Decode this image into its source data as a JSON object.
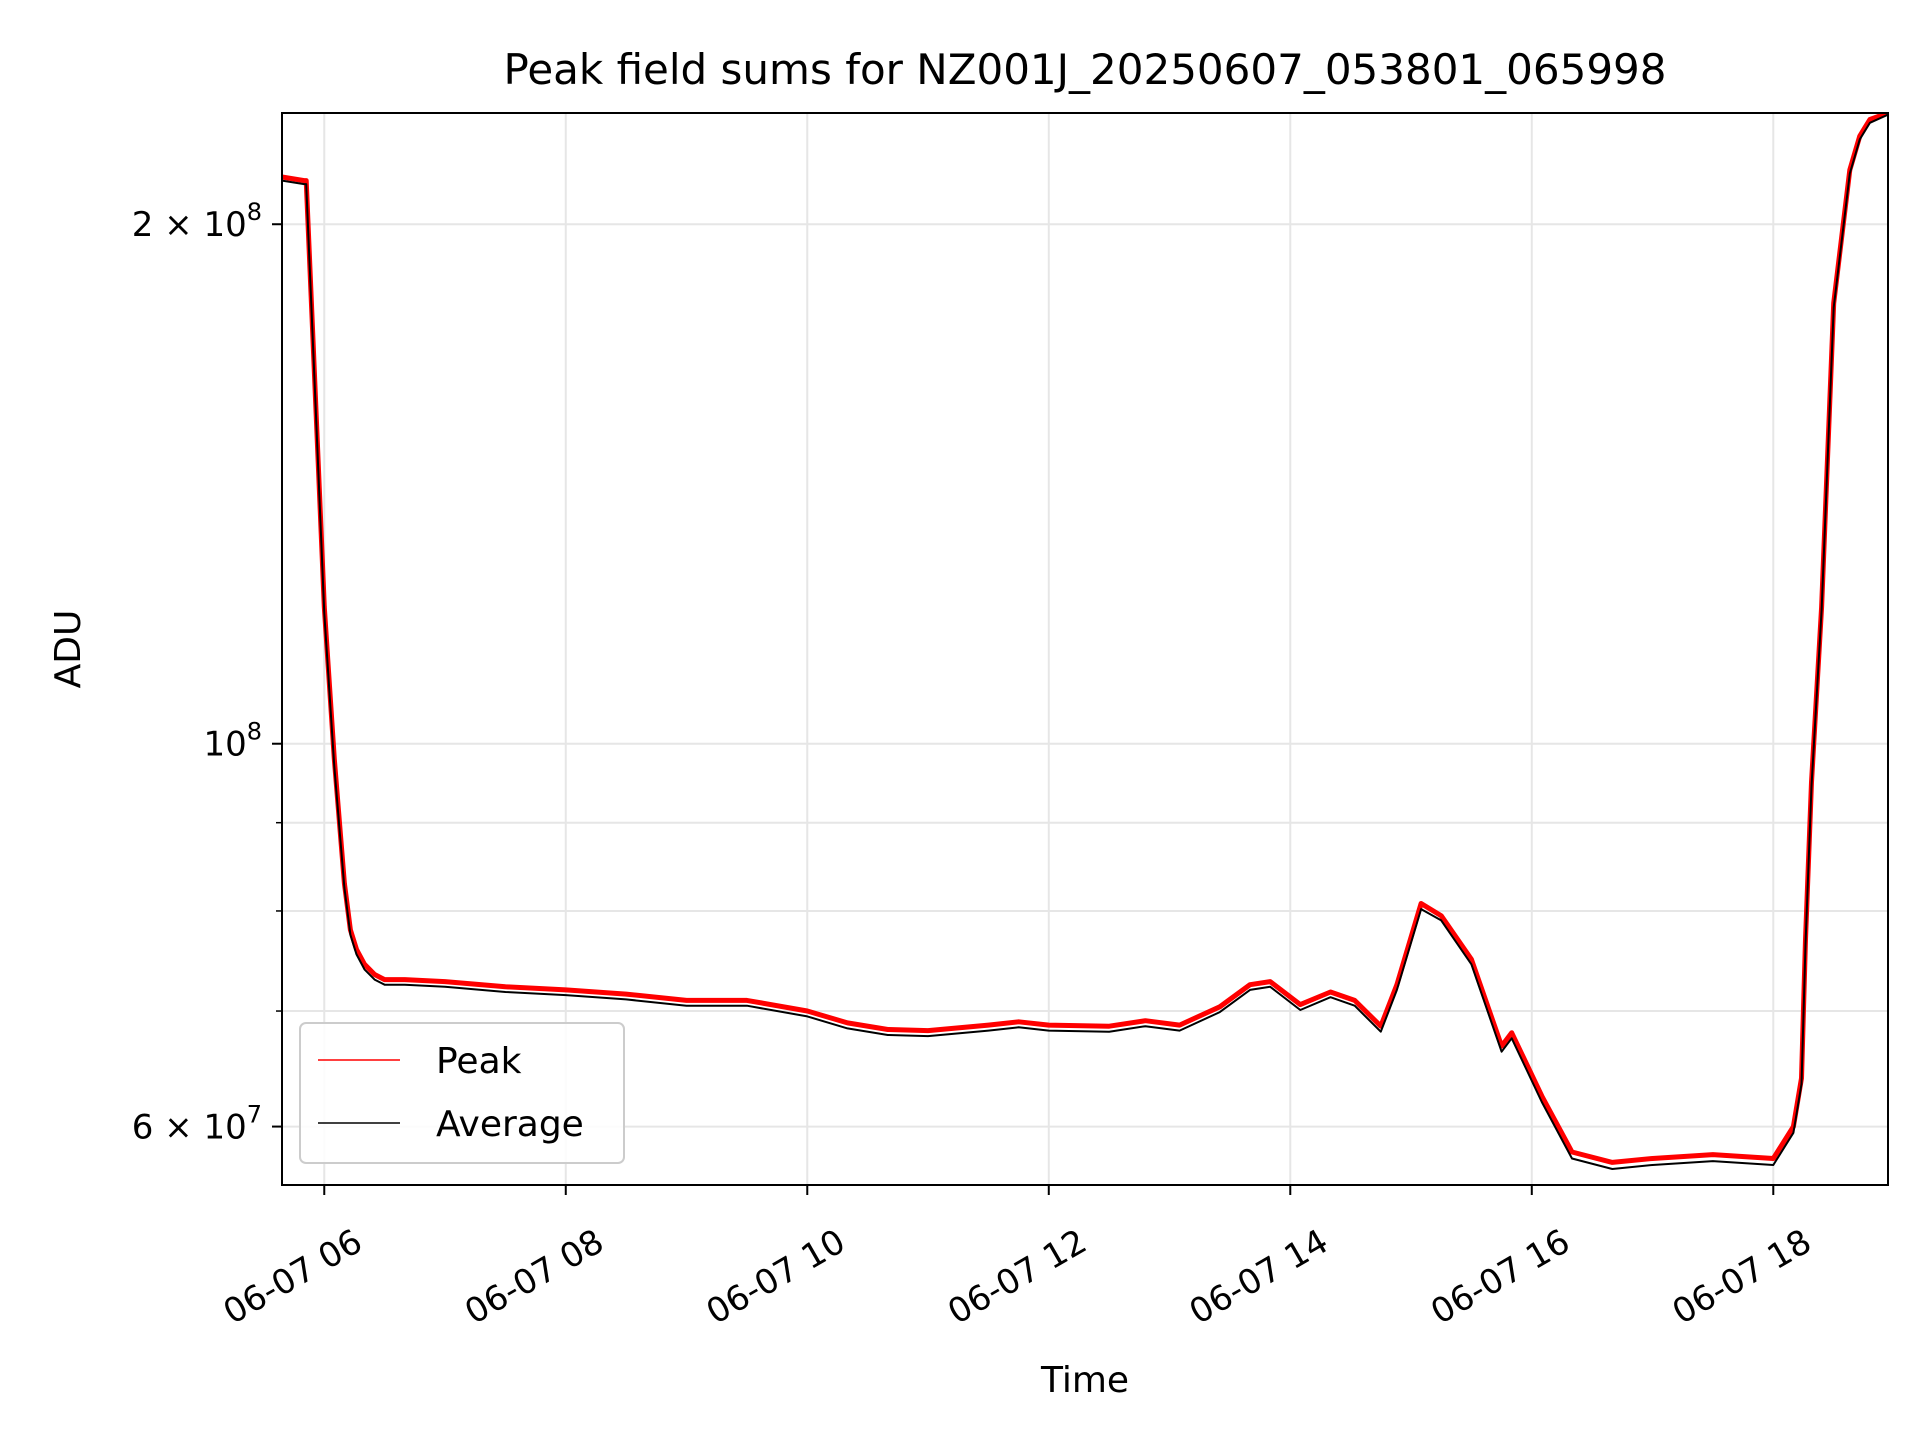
{
  "chart_data": {
    "type": "line",
    "title": "Peak field sums for NZ001J_20250607_053801_065998",
    "xlabel": "Time",
    "ylabel": "ADU",
    "yscale": "log",
    "ylim": [
      55500000,
      232000000
    ],
    "xlim": [
      "2025-06-07T05:39",
      "2025-06-07T18:57"
    ],
    "grid": true,
    "legend_position": "lower-left",
    "x_ticks": [
      {
        "value": "2025-06-07T06:00",
        "label": "06-07 06"
      },
      {
        "value": "2025-06-07T08:00",
        "label": "06-07 08"
      },
      {
        "value": "2025-06-07T10:00",
        "label": "06-07 10"
      },
      {
        "value": "2025-06-07T12:00",
        "label": "06-07 12"
      },
      {
        "value": "2025-06-07T14:00",
        "label": "06-07 14"
      },
      {
        "value": "2025-06-07T16:00",
        "label": "06-07 16"
      },
      {
        "value": "2025-06-07T18:00",
        "label": "06-07 18"
      }
    ],
    "y_ticks": [
      {
        "value": 60000000,
        "base": "6 × 10",
        "exp": "7"
      },
      {
        "value": 100000000,
        "base": "10",
        "exp": "8"
      },
      {
        "value": 200000000,
        "base": "2 × 10",
        "exp": "8"
      }
    ],
    "y_minor_ticks": [
      70000000,
      80000000,
      90000000
    ],
    "series": [
      {
        "name": "Peak",
        "color": "#ff0000",
        "x": [
          "2025-06-07T05:39",
          "2025-06-07T05:50",
          "2025-06-07T05:51",
          "2025-06-07T05:56",
          "2025-06-07T06:00",
          "2025-06-07T06:05",
          "2025-06-07T06:10",
          "2025-06-07T06:13",
          "2025-06-07T06:16",
          "2025-06-07T06:20",
          "2025-06-07T06:25",
          "2025-06-07T06:30",
          "2025-06-07T06:40",
          "2025-06-07T07:00",
          "2025-06-07T07:30",
          "2025-06-07T08:00",
          "2025-06-07T08:30",
          "2025-06-07T09:00",
          "2025-06-07T09:30",
          "2025-06-07T10:00",
          "2025-06-07T10:20",
          "2025-06-07T10:40",
          "2025-06-07T11:00",
          "2025-06-07T11:30",
          "2025-06-07T11:45",
          "2025-06-07T12:00",
          "2025-06-07T12:30",
          "2025-06-07T12:48",
          "2025-06-07T13:05",
          "2025-06-07T13:25",
          "2025-06-07T13:40",
          "2025-06-07T13:50",
          "2025-06-07T14:05",
          "2025-06-07T14:20",
          "2025-06-07T14:32",
          "2025-06-07T14:45",
          "2025-06-07T14:53",
          "2025-06-07T15:05",
          "2025-06-07T15:15",
          "2025-06-07T15:30",
          "2025-06-07T15:45",
          "2025-06-07T15:50",
          "2025-06-07T16:05",
          "2025-06-07T16:20",
          "2025-06-07T16:40",
          "2025-06-07T17:00",
          "2025-06-07T17:30",
          "2025-06-07T18:00",
          "2025-06-07T18:10",
          "2025-06-07T18:14",
          "2025-06-07T18:16",
          "2025-06-07T18:19",
          "2025-06-07T18:24",
          "2025-06-07T18:30",
          "2025-06-07T18:38",
          "2025-06-07T18:43",
          "2025-06-07T18:48",
          "2025-06-07T18:57"
        ],
        "y": [
          213000000,
          212000000,
          212000000,
          155000000,
          120000000,
          98000000,
          83000000,
          78000000,
          76000000,
          74500000,
          73500000,
          73000000,
          73000000,
          72800000,
          72300000,
          72000000,
          71600000,
          71000000,
          71000000,
          70000000,
          68900000,
          68300000,
          68200000,
          68700000,
          69000000,
          68700000,
          68600000,
          69100000,
          68700000,
          70400000,
          72500000,
          72800000,
          70600000,
          71800000,
          71000000,
          68600000,
          72500000,
          80800000,
          79500000,
          75000000,
          66800000,
          68000000,
          62500000,
          58000000,
          57200000,
          57500000,
          57800000,
          57500000,
          60000000,
          64000000,
          77000000,
          95000000,
          120000000,
          180000000,
          215000000,
          225000000,
          230000000,
          232000000
        ]
      },
      {
        "name": "Average",
        "color": "#000000",
        "x": [
          "2025-06-07T05:39",
          "2025-06-07T05:50",
          "2025-06-07T05:51",
          "2025-06-07T05:56",
          "2025-06-07T06:00",
          "2025-06-07T06:05",
          "2025-06-07T06:10",
          "2025-06-07T06:13",
          "2025-06-07T06:16",
          "2025-06-07T06:20",
          "2025-06-07T06:25",
          "2025-06-07T06:30",
          "2025-06-07T06:40",
          "2025-06-07T07:00",
          "2025-06-07T07:30",
          "2025-06-07T08:00",
          "2025-06-07T08:30",
          "2025-06-07T09:00",
          "2025-06-07T09:30",
          "2025-06-07T10:00",
          "2025-06-07T10:20",
          "2025-06-07T10:40",
          "2025-06-07T11:00",
          "2025-06-07T11:30",
          "2025-06-07T11:45",
          "2025-06-07T12:00",
          "2025-06-07T12:30",
          "2025-06-07T12:48",
          "2025-06-07T13:05",
          "2025-06-07T13:25",
          "2025-06-07T13:40",
          "2025-06-07T13:50",
          "2025-06-07T14:05",
          "2025-06-07T14:20",
          "2025-06-07T14:32",
          "2025-06-07T14:45",
          "2025-06-07T14:53",
          "2025-06-07T15:05",
          "2025-06-07T15:15",
          "2025-06-07T15:30",
          "2025-06-07T15:45",
          "2025-06-07T15:50",
          "2025-06-07T16:05",
          "2025-06-07T16:20",
          "2025-06-07T16:40",
          "2025-06-07T17:00",
          "2025-06-07T17:30",
          "2025-06-07T18:00",
          "2025-06-07T18:10",
          "2025-06-07T18:14",
          "2025-06-07T18:16",
          "2025-06-07T18:19",
          "2025-06-07T18:24",
          "2025-06-07T18:30",
          "2025-06-07T18:38",
          "2025-06-07T18:43",
          "2025-06-07T18:48",
          "2025-06-07T18:57"
        ],
        "y": [
          212000000,
          211000000,
          211000000,
          154000000,
          119000000,
          97000000,
          82500000,
          77500000,
          75500000,
          74000000,
          73000000,
          72500000,
          72500000,
          72300000,
          71800000,
          71500000,
          71100000,
          70500000,
          70500000,
          69500000,
          68400000,
          67800000,
          67700000,
          68200000,
          68500000,
          68200000,
          68100000,
          68600000,
          68200000,
          69900000,
          72000000,
          72300000,
          70100000,
          71300000,
          70500000,
          68100000,
          72000000,
          80200000,
          79000000,
          74500000,
          66300000,
          67500000,
          62000000,
          57500000,
          56700000,
          57000000,
          57300000,
          57000000,
          59500000,
          63500000,
          76500000,
          94500000,
          119500000,
          179000000,
          214000000,
          224000000,
          229000000,
          231500000
        ]
      }
    ]
  }
}
